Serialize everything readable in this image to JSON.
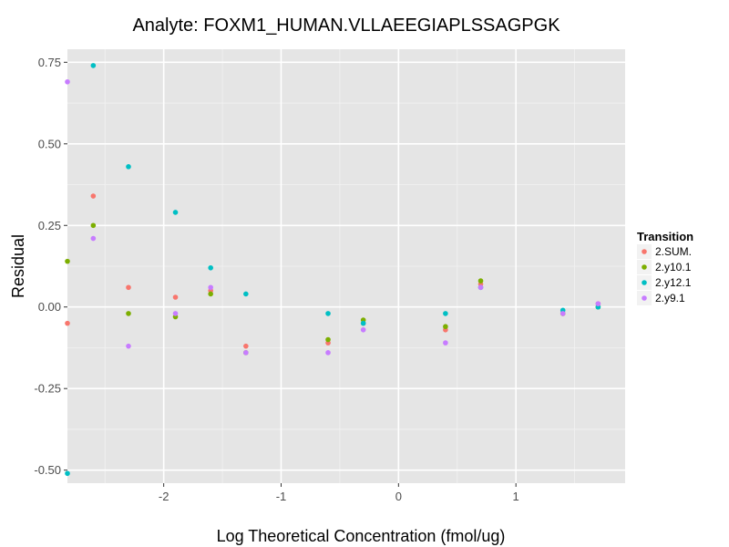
{
  "chart_data": {
    "type": "scatter",
    "title": "Analyte: FOXM1_HUMAN.VLLAEEGIAPLSSAGPGK",
    "xlabel": "Log Theoretical Concentration (fmol/ug)",
    "ylabel": "Residual",
    "xlim": [
      -2.82,
      1.93
    ],
    "ylim": [
      -0.54,
      0.79
    ],
    "x_ticks": [
      -2,
      -1,
      0,
      1
    ],
    "x_tick_labels": [
      "-2",
      "-1",
      "0",
      "1"
    ],
    "y_ticks": [
      -0.5,
      -0.25,
      0.0,
      0.25,
      0.5,
      0.75
    ],
    "y_tick_labels": [
      "-0.50",
      "-0.25",
      "0.00",
      "0.25",
      "0.50",
      "0.75"
    ],
    "grid": true,
    "legend": {
      "title": "Transition",
      "position": "right"
    },
    "series": [
      {
        "name": "2.SUM.",
        "color": "#F8766D",
        "points": [
          {
            "x": -2.82,
            "y": -0.05
          },
          {
            "x": -2.6,
            "y": 0.34
          },
          {
            "x": -2.3,
            "y": 0.06
          },
          {
            "x": -1.9,
            "y": 0.03
          },
          {
            "x": -1.6,
            "y": 0.05
          },
          {
            "x": -1.3,
            "y": -0.12
          },
          {
            "x": -0.6,
            "y": -0.11
          },
          {
            "x": -0.3,
            "y": -0.05
          },
          {
            "x": 0.4,
            "y": -0.07
          },
          {
            "x": 0.7,
            "y": 0.07
          },
          {
            "x": 1.4,
            "y": -0.02
          },
          {
            "x": 1.7,
            "y": 0.01
          }
        ]
      },
      {
        "name": "2.y10.1",
        "color": "#7CAE00",
        "points": [
          {
            "x": -2.82,
            "y": 0.14
          },
          {
            "x": -2.6,
            "y": 0.25
          },
          {
            "x": -2.3,
            "y": -0.02
          },
          {
            "x": -1.9,
            "y": -0.03
          },
          {
            "x": -1.6,
            "y": 0.04
          },
          {
            "x": -1.3,
            "y": -0.14
          },
          {
            "x": -0.6,
            "y": -0.1
          },
          {
            "x": -0.3,
            "y": -0.04
          },
          {
            "x": 0.4,
            "y": -0.06
          },
          {
            "x": 0.7,
            "y": 0.08
          },
          {
            "x": 1.4,
            "y": -0.02
          },
          {
            "x": 1.7,
            "y": 0.0
          }
        ]
      },
      {
        "name": "2.y12.1",
        "color": "#00BFC4",
        "points": [
          {
            "x": -2.82,
            "y": -0.51
          },
          {
            "x": -2.6,
            "y": 0.74
          },
          {
            "x": -2.3,
            "y": 0.43
          },
          {
            "x": -1.9,
            "y": 0.29
          },
          {
            "x": -1.6,
            "y": 0.12
          },
          {
            "x": -1.3,
            "y": 0.04
          },
          {
            "x": -0.6,
            "y": -0.02
          },
          {
            "x": -0.3,
            "y": -0.05
          },
          {
            "x": 0.4,
            "y": -0.02
          },
          {
            "x": 0.7,
            "y": 0.06
          },
          {
            "x": 1.4,
            "y": -0.01
          },
          {
            "x": 1.7,
            "y": 0.0
          }
        ]
      },
      {
        "name": "2.y9.1",
        "color": "#C77CFF",
        "points": [
          {
            "x": -2.82,
            "y": 0.69
          },
          {
            "x": -2.6,
            "y": 0.21
          },
          {
            "x": -2.3,
            "y": -0.12
          },
          {
            "x": -1.9,
            "y": -0.02
          },
          {
            "x": -1.6,
            "y": 0.06
          },
          {
            "x": -1.3,
            "y": -0.14
          },
          {
            "x": -0.6,
            "y": -0.14
          },
          {
            "x": -0.3,
            "y": -0.07
          },
          {
            "x": 0.4,
            "y": -0.11
          },
          {
            "x": 0.7,
            "y": 0.06
          },
          {
            "x": 1.4,
            "y": -0.02
          },
          {
            "x": 1.7,
            "y": 0.01
          }
        ]
      }
    ]
  }
}
